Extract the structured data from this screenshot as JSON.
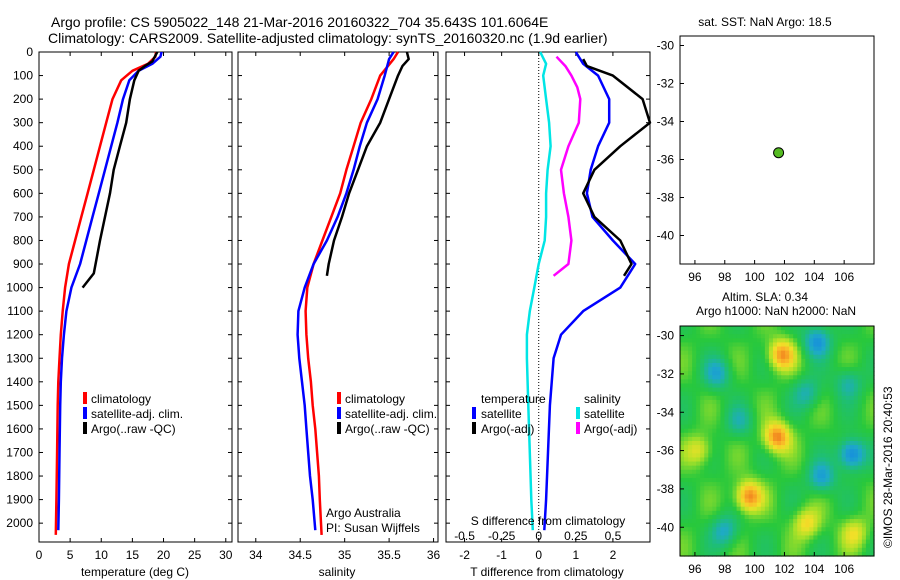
{
  "header": {
    "line1": "Argo profile: CS 5905022_148 21-Mar-2016 20160322_704 35.643S 101.6064E",
    "line2": "Climatology: CARS2009. Satellite-adjusted climatology: synTS_20160320.nc (1.9d earlier)"
  },
  "colors": {
    "climatology": "#ff0000",
    "satellite": "#0000ff",
    "argo": "#000000",
    "salinity_sat": "#00e5e5",
    "salinity_argo": "#ff00ff",
    "map_dot": "#55bb22"
  },
  "chart_data": [
    {
      "id": "temperature",
      "type": "line",
      "xlabel": "temperature (deg C)",
      "xlim": [
        0,
        31
      ],
      "xticks": [
        0,
        5,
        10,
        15,
        20,
        25,
        30
      ],
      "ylim": [
        2080,
        0
      ],
      "yticks": [
        0,
        100,
        200,
        300,
        400,
        500,
        600,
        700,
        800,
        900,
        1000,
        1100,
        1200,
        1300,
        1400,
        1500,
        1600,
        1700,
        1800,
        1900,
        2000
      ],
      "legend": [
        "climatology",
        "satellite-adj. clim.",
        "Argo(..raw -QC)"
      ],
      "series": [
        {
          "name": "climatology",
          "color": "#ff0000",
          "points": [
            [
              18.8,
              0
            ],
            [
              18.7,
              20
            ],
            [
              17.5,
              50
            ],
            [
              15,
              80
            ],
            [
              13.2,
              120
            ],
            [
              11.8,
              200
            ],
            [
              10.8,
              300
            ],
            [
              9.8,
              400
            ],
            [
              8.8,
              500
            ],
            [
              7.8,
              600
            ],
            [
              6.8,
              700
            ],
            [
              5.8,
              800
            ],
            [
              4.8,
              900
            ],
            [
              4.2,
              1000
            ],
            [
              3.8,
              1100
            ],
            [
              3.5,
              1200
            ],
            [
              3.3,
              1300
            ],
            [
              3.1,
              1400
            ],
            [
              3,
              1500
            ],
            [
              2.9,
              1700
            ],
            [
              2.8,
              1900
            ],
            [
              2.7,
              2050
            ]
          ]
        },
        {
          "name": "satellite-adj. clim.",
          "color": "#0000ff",
          "points": [
            [
              19.7,
              0
            ],
            [
              19.5,
              20
            ],
            [
              18.2,
              50
            ],
            [
              16,
              80
            ],
            [
              14.5,
              120
            ],
            [
              13.5,
              200
            ],
            [
              12.6,
              300
            ],
            [
              11.6,
              400
            ],
            [
              10.6,
              500
            ],
            [
              9.6,
              600
            ],
            [
              8.6,
              700
            ],
            [
              7.6,
              800
            ],
            [
              6.6,
              900
            ],
            [
              5.2,
              1000
            ],
            [
              4.4,
              1100
            ],
            [
              4,
              1200
            ],
            [
              3.7,
              1300
            ],
            [
              3.5,
              1400
            ],
            [
              3.4,
              1500
            ],
            [
              3.3,
              1700
            ],
            [
              3.2,
              1900
            ],
            [
              3.1,
              2030
            ]
          ]
        },
        {
          "name": "Argo(..raw -QC)",
          "color": "#000000",
          "points": [
            [
              19,
              0
            ],
            [
              18.6,
              20
            ],
            [
              18.2,
              40
            ],
            [
              17,
              60
            ],
            [
              16,
              80
            ],
            [
              15.3,
              120
            ],
            [
              14.6,
              200
            ],
            [
              14,
              300
            ],
            [
              13,
              400
            ],
            [
              12,
              500
            ],
            [
              11.4,
              600
            ],
            [
              10.6,
              700
            ],
            [
              9.8,
              800
            ],
            [
              9.3,
              870
            ],
            [
              8.8,
              940
            ],
            [
              7,
              1000
            ]
          ]
        }
      ]
    },
    {
      "id": "salinity",
      "type": "line",
      "xlabel": "salinity",
      "xlim": [
        33.8,
        36.05
      ],
      "xticks": [
        34,
        34.5,
        35,
        35.5,
        36
      ],
      "xticklabels": [
        "34",
        "34.5",
        "35",
        "35.5",
        "36"
      ],
      "ylim": [
        2080,
        0
      ],
      "legend": [
        "climatology",
        "satellite-adj. clim.",
        "Argo(..raw -QC)"
      ],
      "annotation": [
        "Argo Australia",
        "PI: Susan Wijffels"
      ],
      "series": [
        {
          "name": "climatology",
          "color": "#ff0000",
          "points": [
            [
              35.6,
              0
            ],
            [
              35.55,
              30
            ],
            [
              35.4,
              100
            ],
            [
              35.3,
              200
            ],
            [
              35.18,
              300
            ],
            [
              35.1,
              400
            ],
            [
              35.02,
              500
            ],
            [
              34.95,
              600
            ],
            [
              34.85,
              700
            ],
            [
              34.75,
              800
            ],
            [
              34.65,
              900
            ],
            [
              34.58,
              1000
            ],
            [
              34.56,
              1100
            ],
            [
              34.57,
              1200
            ],
            [
              34.59,
              1300
            ],
            [
              34.62,
              1400
            ],
            [
              34.64,
              1500
            ],
            [
              34.67,
              1600
            ],
            [
              34.69,
              1700
            ],
            [
              34.71,
              1800
            ],
            [
              34.72,
              1900
            ],
            [
              34.74,
              2050
            ]
          ]
        },
        {
          "name": "satellite-adj. clim.",
          "color": "#0000ff",
          "points": [
            [
              35.55,
              0
            ],
            [
              35.5,
              30
            ],
            [
              35.45,
              100
            ],
            [
              35.37,
              200
            ],
            [
              35.25,
              300
            ],
            [
              35.17,
              400
            ],
            [
              35.1,
              500
            ],
            [
              35.02,
              600
            ],
            [
              34.92,
              700
            ],
            [
              34.8,
              800
            ],
            [
              34.65,
              900
            ],
            [
              34.55,
              1000
            ],
            [
              34.48,
              1100
            ],
            [
              34.47,
              1200
            ],
            [
              34.49,
              1300
            ],
            [
              34.52,
              1400
            ],
            [
              34.55,
              1500
            ],
            [
              34.57,
              1600
            ],
            [
              34.59,
              1700
            ],
            [
              34.61,
              1800
            ],
            [
              34.64,
              1900
            ],
            [
              34.67,
              2030
            ]
          ]
        },
        {
          "name": "Argo(..raw -QC)",
          "color": "#000000",
          "points": [
            [
              35.7,
              0
            ],
            [
              35.72,
              30
            ],
            [
              35.65,
              60
            ],
            [
              35.6,
              100
            ],
            [
              35.5,
              200
            ],
            [
              35.4,
              300
            ],
            [
              35.25,
              400
            ],
            [
              35.15,
              500
            ],
            [
              35.05,
              600
            ],
            [
              34.97,
              700
            ],
            [
              34.88,
              800
            ],
            [
              34.82,
              900
            ],
            [
              34.8,
              950
            ]
          ]
        }
      ]
    },
    {
      "id": "differences",
      "type": "line",
      "xlabel": "T difference from climatology",
      "x2label": "S difference from climatology",
      "xlim": [
        -2.5,
        3.0
      ],
      "xticks": [
        -2,
        -1,
        0,
        1,
        2
      ],
      "x2lim": [
        -0.625,
        0.75
      ],
      "x2ticks": [
        -0.5,
        -0.25,
        0,
        0.25,
        0.5
      ],
      "x2ticklabels": [
        "-0.5",
        "-0.25",
        "0",
        "0.25",
        "0.5"
      ],
      "ylim": [
        2080,
        0
      ],
      "legend_headers": [
        "temperature",
        "salinity"
      ],
      "legend": [
        "satellite",
        "Argo(-adj)",
        "satellite",
        "Argo(-adj)"
      ],
      "series": [
        {
          "name": "temperature satellite",
          "color": "#0000ff",
          "axis": "T",
          "points": [
            [
              1,
              0
            ],
            [
              1.2,
              50
            ],
            [
              1.6,
              100
            ],
            [
              1.9,
              200
            ],
            [
              1.9,
              300
            ],
            [
              1.6,
              400
            ],
            [
              1.4,
              500
            ],
            [
              1.3,
              600
            ],
            [
              1.45,
              700
            ],
            [
              2,
              800
            ],
            [
              2.6,
              900
            ],
            [
              2.2,
              1000
            ],
            [
              1.2,
              1100
            ],
            [
              0.6,
              1200
            ],
            [
              0.4,
              1300
            ],
            [
              0.3,
              1500
            ],
            [
              0.25,
              1700
            ],
            [
              0.2,
              1900
            ],
            [
              0.15,
              2030
            ]
          ]
        },
        {
          "name": "temperature Argo(-adj)",
          "color": "#000000",
          "axis": "T",
          "points": [
            [
              1.2,
              30
            ],
            [
              1.3,
              60
            ],
            [
              2,
              100
            ],
            [
              2.8,
              200
            ],
            [
              3,
              300
            ],
            [
              2.2,
              400
            ],
            [
              1.5,
              500
            ],
            [
              1.2,
              600
            ],
            [
              1.5,
              700
            ],
            [
              2.2,
              800
            ],
            [
              2.5,
              900
            ],
            [
              2.3,
              950
            ]
          ]
        },
        {
          "name": "salinity satellite",
          "color": "#00e5e5",
          "axis": "S",
          "points": [
            [
              0.01,
              0
            ],
            [
              0.05,
              50
            ],
            [
              0.03,
              100
            ],
            [
              0.05,
              200
            ],
            [
              0.07,
              300
            ],
            [
              0.08,
              400
            ],
            [
              0.06,
              500
            ],
            [
              0.05,
              600
            ],
            [
              0.05,
              700
            ],
            [
              0.04,
              800
            ],
            [
              0,
              900
            ],
            [
              -0.03,
              1000
            ],
            [
              -0.06,
              1100
            ],
            [
              -0.08,
              1200
            ],
            [
              -0.08,
              1300
            ],
            [
              -0.07,
              1500
            ],
            [
              -0.06,
              1700
            ],
            [
              -0.05,
              1900
            ],
            [
              -0.04,
              2030
            ]
          ]
        },
        {
          "name": "salinity Argo(-adj)",
          "color": "#ff00ff",
          "axis": "S",
          "points": [
            [
              0.12,
              20
            ],
            [
              0.18,
              60
            ],
            [
              0.22,
              100
            ],
            [
              0.26,
              150
            ],
            [
              0.28,
              200
            ],
            [
              0.27,
              300
            ],
            [
              0.2,
              400
            ],
            [
              0.15,
              500
            ],
            [
              0.17,
              600
            ],
            [
              0.2,
              700
            ],
            [
              0.22,
              800
            ],
            [
              0.2,
              900
            ],
            [
              0.1,
              950
            ]
          ]
        }
      ]
    },
    {
      "id": "map_sst",
      "type": "scatter",
      "title": "sat. SST: NaN Argo: 18.5",
      "xlim": [
        95,
        108
      ],
      "xticks": [
        96,
        98,
        100,
        102,
        104,
        106
      ],
      "ylim": [
        -41.5,
        -29.5
      ],
      "yticks": [
        -30,
        -32,
        -34,
        -36,
        -38,
        -40
      ],
      "points": [
        [
          101.6064,
          -35.643
        ]
      ]
    },
    {
      "id": "map_sla",
      "type": "heatmap",
      "title_line1": "Altim. SLA: 0.34",
      "title_line2": "Argo h1000: NaN h2000: NaN",
      "xlim": [
        95,
        108
      ],
      "xticks": [
        96,
        98,
        100,
        102,
        104,
        106
      ],
      "ylim": [
        -41.5,
        -29.5
      ],
      "yticks": [
        -30,
        -32,
        -34,
        -36,
        -38,
        -40
      ],
      "features": [
        {
          "x": 101.8,
          "y": -31,
          "sign": 1,
          "amp": 0.9
        },
        {
          "x": 104.2,
          "y": -30.3,
          "sign": -1,
          "amp": 0.8
        },
        {
          "x": 97.5,
          "y": -32,
          "sign": -1,
          "amp": 0.6
        },
        {
          "x": 103.5,
          "y": -33,
          "sign": -1,
          "amp": 0.5
        },
        {
          "x": 101.5,
          "y": -35.3,
          "sign": 1,
          "amp": 1.0
        },
        {
          "x": 106.5,
          "y": -36.2,
          "sign": -1,
          "amp": 1.0
        },
        {
          "x": 99.6,
          "y": -38.4,
          "sign": 1,
          "amp": 1.0
        },
        {
          "x": 104.5,
          "y": -37.4,
          "sign": -1,
          "amp": 0.7
        },
        {
          "x": 96.3,
          "y": -36,
          "sign": 1,
          "amp": 0.5
        },
        {
          "x": 106.3,
          "y": -32.5,
          "sign": -1,
          "amp": 0.5
        },
        {
          "x": 98,
          "y": -40.2,
          "sign": -1,
          "amp": 0.6
        },
        {
          "x": 103.5,
          "y": -39.8,
          "sign": 1,
          "amp": 0.6
        },
        {
          "x": 99,
          "y": -34.5,
          "sign": -1,
          "amp": 0.4
        },
        {
          "x": 106.7,
          "y": -40.3,
          "sign": 1,
          "amp": 0.5
        }
      ]
    }
  ],
  "footer_stamp": "©IMOS 28-Mar-2016 20:40:53"
}
